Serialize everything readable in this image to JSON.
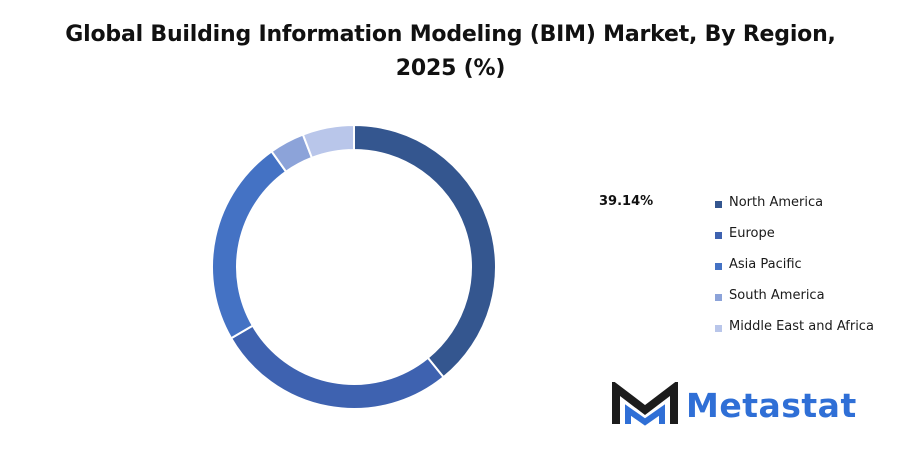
{
  "chart_data": {
    "type": "pie",
    "title_line1": "Global Building Information Modeling (BIM) Market, By Region,",
    "title_line2": "2025 (%)",
    "categories": [
      "North America",
      "Europe",
      "Asia Pacific",
      "South America",
      "Middle East and Africa"
    ],
    "values": [
      39.14,
      27.5,
      23.5,
      4.0,
      5.86
    ],
    "colors": [
      "#34568f",
      "#3e62b0",
      "#4472c4",
      "#8ca3d9",
      "#b9c6ea"
    ],
    "data_labels": [
      "39.14%"
    ],
    "donut": true,
    "legend_position": "right"
  },
  "logo": {
    "text": "Metastat",
    "icon": "metastat-m-icon"
  }
}
